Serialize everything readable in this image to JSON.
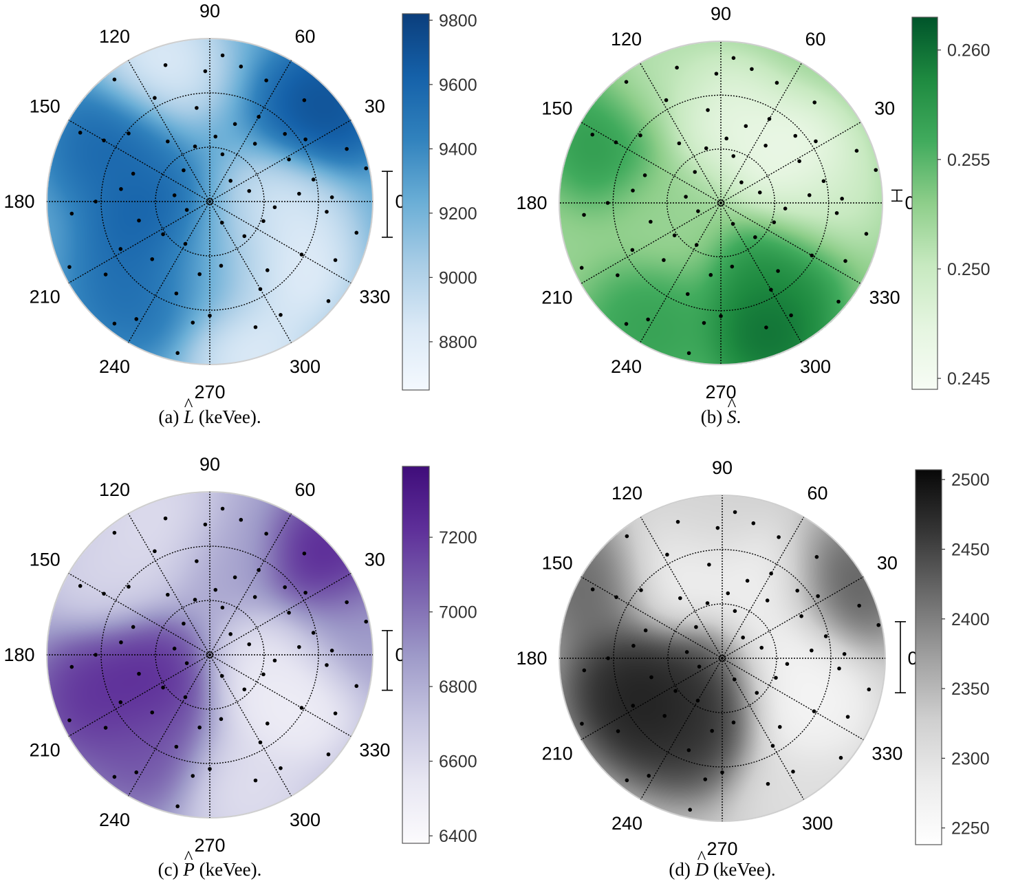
{
  "angle_labels": [
    "0",
    "30",
    "60",
    "90",
    "120",
    "150",
    "180",
    "210",
    "240",
    "270",
    "300",
    "330"
  ],
  "colors": {
    "blue": [
      "#f4f9fe",
      "#dbe9f6",
      "#a9cde6",
      "#6aaed6",
      "#3182bd",
      "#1561a9",
      "#0b3e7c"
    ],
    "green": [
      "#f7fcf5",
      "#e5f5e0",
      "#c7e9c0",
      "#8ece8a",
      "#41ab5d",
      "#1e8a40",
      "#00542a"
    ],
    "purple": [
      "#fcfbfd",
      "#e7e6f2",
      "#c5c4e0",
      "#9d99c8",
      "#7a62ae",
      "#5e2f99",
      "#3f0d7a"
    ],
    "gray": [
      "#ffffff",
      "#ececec",
      "#cfcfcf",
      "#a0a0a0",
      "#6b6b6b",
      "#363636",
      "#080808"
    ]
  },
  "chart_data": [
    {
      "type": "heatmap",
      "subtype": "polar-interpolated",
      "caption_prefix": "(a)",
      "symbol": "L",
      "caption_suffix": "(keVee).",
      "colormap": "blue",
      "colorbar": {
        "range": [
          8650,
          9820
        ],
        "ticks": [
          8800,
          9000,
          9200,
          9400,
          9600,
          9800
        ],
        "error_bar": [
          9125,
          9330
        ]
      },
      "grid": true,
      "hotspots": [
        [
          40,
          0.9,
          9800
        ],
        [
          150,
          0.7,
          9650
        ],
        [
          200,
          0.4,
          9700
        ],
        [
          230,
          0.7,
          9600
        ],
        [
          320,
          0.65,
          8700
        ],
        [
          350,
          0.45,
          8800
        ],
        [
          110,
          0.9,
          8750
        ],
        [
          285,
          0.95,
          8750
        ],
        [
          260,
          0.4,
          9350
        ],
        [
          300,
          0.4,
          9000
        ]
      ],
      "base": 9250
    },
    {
      "type": "heatmap",
      "subtype": "polar-interpolated",
      "caption_prefix": "(b)",
      "symbol": "S",
      "caption_suffix": ".",
      "colormap": "green",
      "colorbar": {
        "range": [
          0.2445,
          0.2615
        ],
        "ticks": [
          0.245,
          0.25,
          0.255,
          0.26
        ],
        "tick_labels": [
          "0.245",
          "0.250",
          "0.255",
          "0.260"
        ],
        "error_bar": [
          0.2531,
          0.2536
        ]
      },
      "grid": true,
      "hotspots": [
        [
          290,
          0.85,
          0.2615
        ],
        [
          310,
          0.55,
          0.2595
        ],
        [
          150,
          0.8,
          0.2585
        ],
        [
          240,
          0.9,
          0.2575
        ],
        [
          30,
          0.5,
          0.2448
        ],
        [
          90,
          0.5,
          0.2462
        ],
        [
          0,
          0.6,
          0.2495
        ],
        [
          180,
          0.3,
          0.2525
        ],
        [
          120,
          0.8,
          0.2505
        ]
      ],
      "base": 0.2525
    },
    {
      "type": "heatmap",
      "subtype": "polar-interpolated",
      "caption_prefix": "(c)",
      "symbol": "P",
      "caption_suffix": "(keVee).",
      "colormap": "purple",
      "colorbar": {
        "range": [
          6380,
          7390
        ],
        "ticks": [
          6400,
          6600,
          6800,
          7000,
          7200
        ],
        "error_bar": [
          6790,
          6950
        ]
      },
      "grid": true,
      "hotspots": [
        [
          40,
          0.9,
          7350
        ],
        [
          200,
          0.4,
          7300
        ],
        [
          200,
          0.75,
          7280
        ],
        [
          235,
          0.7,
          7150
        ],
        [
          330,
          0.6,
          6420
        ],
        [
          350,
          0.4,
          6500
        ],
        [
          110,
          0.85,
          6550
        ],
        [
          140,
          0.8,
          6600
        ],
        [
          285,
          0.85,
          6550
        ],
        [
          10,
          0.85,
          6900
        ],
        [
          80,
          0.6,
          6850
        ]
      ],
      "base": 6800
    },
    {
      "type": "heatmap",
      "subtype": "polar-interpolated",
      "caption_prefix": "(d)",
      "symbol": "D",
      "caption_suffix": "(keVee).",
      "colormap": "gray",
      "colorbar": {
        "range": [
          2238,
          2507
        ],
        "ticks": [
          2250,
          2300,
          2350,
          2400,
          2450,
          2500
        ],
        "error_bar": [
          2347,
          2398
        ]
      },
      "grid": true,
      "hotspots": [
        [
          215,
          0.55,
          2505
        ],
        [
          195,
          0.6,
          2495
        ],
        [
          245,
          0.5,
          2480
        ],
        [
          240,
          0.2,
          2480
        ],
        [
          150,
          0.9,
          2440
        ],
        [
          30,
          0.85,
          2450
        ],
        [
          330,
          0.6,
          2250
        ],
        [
          0,
          0.4,
          2255
        ],
        [
          60,
          0.5,
          2265
        ],
        [
          120,
          0.6,
          2260
        ],
        [
          300,
          0.95,
          2300
        ],
        [
          100,
          0.9,
          2320
        ]
      ],
      "base": 2330
    }
  ],
  "sample_points": [
    [
      0.98,
      12
    ],
    [
      0.9,
      21
    ],
    [
      0.85,
      47
    ],
    [
      0.82,
      65
    ],
    [
      0.7,
      33
    ],
    [
      0.55,
      28
    ],
    [
      0.45,
      52
    ],
    [
      0.3,
      75
    ],
    [
      0.35,
      105
    ],
    [
      0.58,
      98
    ],
    [
      0.72,
      118
    ],
    [
      0.88,
      108
    ],
    [
      0.95,
      128
    ],
    [
      0.9,
      152
    ],
    [
      0.65,
      140
    ],
    [
      0.5,
      160
    ],
    [
      0.22,
      170
    ],
    [
      0.15,
      200
    ],
    [
      0.45,
      195
    ],
    [
      0.7,
      180
    ],
    [
      0.85,
      185
    ],
    [
      0.95,
      205
    ],
    [
      0.78,
      215
    ],
    [
      0.5,
      225
    ],
    [
      0.3,
      240
    ],
    [
      0.6,
      250
    ],
    [
      0.85,
      238
    ],
    [
      0.95,
      258
    ],
    [
      0.7,
      270
    ],
    [
      0.4,
      280
    ],
    [
      0.15,
      300
    ],
    [
      0.55,
      310
    ],
    [
      0.82,
      302
    ],
    [
      0.65,
      330
    ],
    [
      0.35,
      340
    ],
    [
      0.85,
      335
    ],
    [
      0.55,
      5
    ],
    [
      0.25,
      15
    ],
    [
      0.75,
      2
    ],
    [
      0.4,
      85
    ],
    [
      0.6,
      60
    ],
    [
      0.25,
      130
    ],
    [
      0.9,
      85
    ],
    [
      0.75,
      150
    ],
    [
      0.62,
      208
    ],
    [
      0.35,
      215
    ],
    [
      0.95,
      232
    ],
    [
      0.45,
      262
    ],
    [
      0.82,
      290
    ],
    [
      0.3,
      315
    ],
    [
      0.72,
      355
    ],
    [
      0.5,
      72
    ],
    [
      0.8,
      92
    ],
    [
      0.45,
      125
    ],
    [
      0.55,
      172
    ],
    [
      0.75,
      262
    ],
    [
      0.92,
      348
    ],
    [
      0.18,
      45
    ],
    [
      0.65,
      12
    ],
    [
      0.4,
      355
    ],
    [
      0.62,
      42
    ],
    [
      0.85,
      77
    ],
    [
      0.62,
      300
    ],
    [
      0.95,
      320
    ]
  ]
}
